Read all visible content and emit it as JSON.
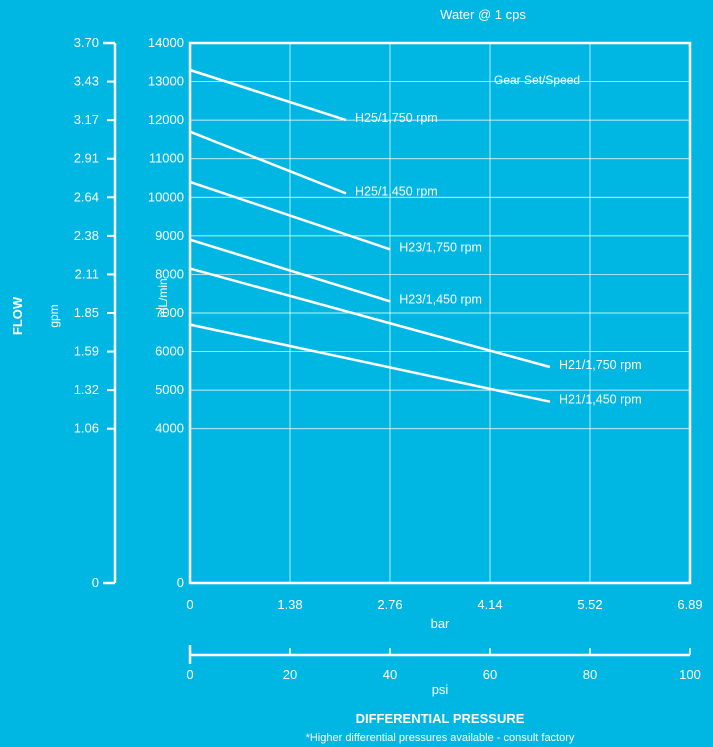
{
  "chart_data": {
    "type": "line",
    "title": "Water @ 1 cps",
    "legend_title": "Gear Set/Speed",
    "xlabel_bar": "bar",
    "xlabel_psi": "psi",
    "xaxis_title": "DIFFERENTIAL PRESSURE",
    "footnote": "*Higher differential pressures available - consult factory",
    "ylabel_ml": "mL/min",
    "ylabel_gpm": "gpm",
    "ylabel_flow": "FLOW",
    "bar_ticks": [
      "0",
      "1.38",
      "2.76",
      "4.14",
      "5.52",
      "6.89"
    ],
    "psi_ticks": [
      "0",
      "20",
      "40",
      "60",
      "80",
      "100"
    ],
    "ml_ticks": [
      "0",
      "4000",
      "5000",
      "6000",
      "7000",
      "8000",
      "9000",
      "10000",
      "11000",
      "12000",
      "13000",
      "14000"
    ],
    "gpm_ticks": [
      "0",
      "1.06",
      "1.32",
      "1.59",
      "1.85",
      "2.11",
      "2.38",
      "2.64",
      "2.91",
      "3.17",
      "3.43",
      "3.70"
    ],
    "xlim_bar": [
      0,
      6.89
    ],
    "ylim_ml": [
      0,
      14000
    ],
    "grid": true,
    "series": [
      {
        "name": "H25/1,750 rpm",
        "x": [
          0,
          2.15
        ],
        "y": [
          13300,
          12000
        ]
      },
      {
        "name": "H25/1,450 rpm",
        "x": [
          0,
          2.15
        ],
        "y": [
          11700,
          10100
        ]
      },
      {
        "name": "H23/1,750 rpm",
        "x": [
          0,
          2.76
        ],
        "y": [
          10400,
          8650
        ]
      },
      {
        "name": "H23/1,450 rpm",
        "x": [
          0,
          2.76
        ],
        "y": [
          8900,
          7300
        ]
      },
      {
        "name": "H21/1,750 rpm",
        "x": [
          0,
          4.96
        ],
        "y": [
          8150,
          5600
        ]
      },
      {
        "name": "H21/1,450 rpm",
        "x": [
          0,
          4.96
        ],
        "y": [
          6700,
          4700
        ]
      }
    ]
  }
}
